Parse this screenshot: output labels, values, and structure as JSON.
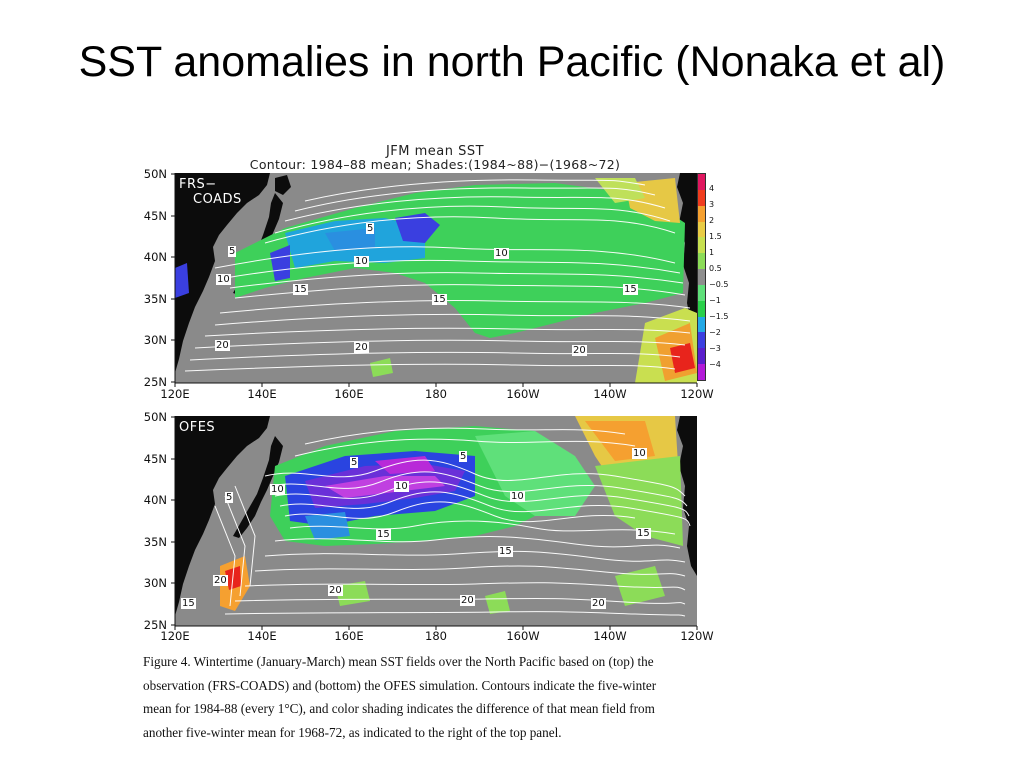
{
  "slide": {
    "title": "SST anomalies in north Pacific (Nonaka et al)"
  },
  "figure": {
    "title_line1": "JFM  mean  SST",
    "title_line2": "Contour:  1984–88  mean;  Shades:(1984~88)−(1968~72)",
    "top_panel_label_1": "FRS−",
    "top_panel_label_2": "COADS",
    "bottom_panel_label": "OFES",
    "lat_ticks": [
      "50N",
      "45N",
      "40N",
      "35N",
      "30N",
      "25N"
    ],
    "lon_ticks": [
      "120E",
      "140E",
      "160E",
      "180",
      "160W",
      "140W",
      "120W"
    ],
    "colorbar_levels": [
      "4",
      "3",
      "2",
      "1.5",
      "1",
      "0.5",
      "−0.5",
      "−1",
      "−1.5",
      "−2",
      "−3",
      "−4"
    ],
    "colorbar_colors": [
      "#e0175f",
      "#f03c1e",
      "#f5a030",
      "#e9cc45",
      "#c7e050",
      "#8cdc58",
      "#8e8e8e",
      "#5fe07a",
      "#2ad04a",
      "#23a9e6",
      "#3b3fe0",
      "#5a1fcc",
      "#b31ad8"
    ],
    "top_contour_labels": [
      "5",
      "5",
      "10",
      "10",
      "10",
      "15",
      "15",
      "15",
      "20",
      "20",
      "20"
    ],
    "bottom_contour_labels": [
      "5",
      "5",
      "5",
      "10",
      "10",
      "10",
      "10",
      "15",
      "15",
      "15",
      "20",
      "20",
      "20",
      "20",
      "15"
    ]
  },
  "caption": {
    "line1": "Figure 4. Wintertime (January-March) mean SST fields over the North Pacific based on (top) the",
    "line2": "observation (FRS-COADS) and (bottom) the OFES simulation. Contours indicate the five-winter",
    "line3": "mean for 1984-88 (every 1°C), and color shading indicates the difference of that mean field from",
    "line4": "another five-winter mean for 1968-72, as indicated to the right of the top panel."
  }
}
